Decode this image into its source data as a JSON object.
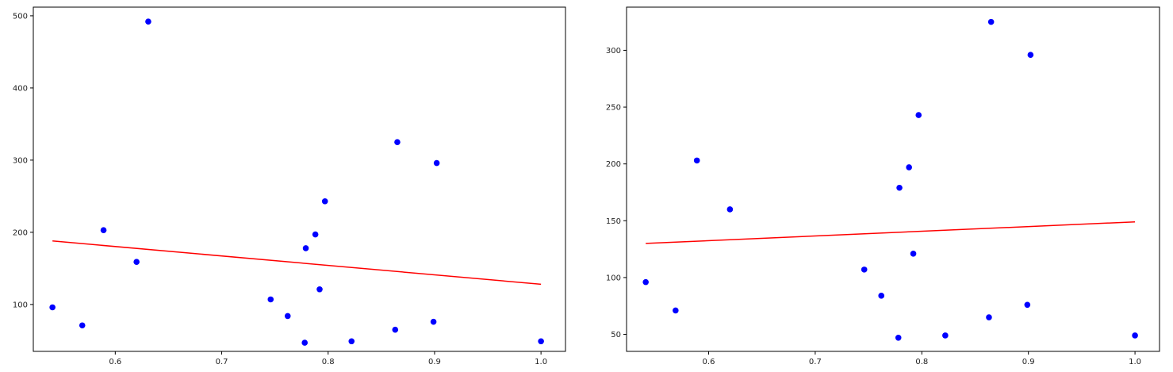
{
  "chart_data": [
    {
      "type": "scatter",
      "title": "",
      "xlabel": "",
      "ylabel": "",
      "xlim": [
        0.523,
        1.023
      ],
      "ylim": [
        35,
        512
      ],
      "xticks": [
        0.6,
        0.7,
        0.8,
        0.9,
        1.0
      ],
      "xtick_labels": [
        "0.6",
        "0.7",
        "0.8",
        "0.9",
        "1.0"
      ],
      "yticks": [
        100,
        200,
        300,
        400,
        500
      ],
      "ytick_labels": [
        "100",
        "200",
        "300",
        "400",
        "500"
      ],
      "grid": false,
      "marker_color": "#0000ff",
      "line_color": "#ff0000",
      "series": [
        {
          "kind": "points",
          "x": [
            0.541,
            0.569,
            0.589,
            0.62,
            0.631,
            0.746,
            0.762,
            0.778,
            0.779,
            0.788,
            0.792,
            0.797,
            0.822,
            0.863,
            0.865,
            0.899,
            0.902,
            1.0
          ],
          "y": [
            96,
            71,
            203,
            159,
            492,
            107,
            84,
            47,
            178,
            197,
            121,
            243,
            49,
            65,
            325,
            76,
            296,
            49
          ]
        },
        {
          "kind": "fit-line",
          "x": [
            0.541,
            1.0
          ],
          "y": [
            188,
            128
          ]
        }
      ]
    },
    {
      "type": "scatter",
      "title": "",
      "xlabel": "",
      "ylabel": "",
      "xlim": [
        0.523,
        1.023
      ],
      "ylim": [
        35,
        338
      ],
      "xticks": [
        0.6,
        0.7,
        0.8,
        0.9,
        1.0
      ],
      "xtick_labels": [
        "0.6",
        "0.7",
        "0.8",
        "0.9",
        "1.0"
      ],
      "yticks": [
        50,
        100,
        150,
        200,
        250,
        300
      ],
      "ytick_labels": [
        "50",
        "100",
        "150",
        "200",
        "250",
        "300"
      ],
      "grid": false,
      "marker_color": "#0000ff",
      "line_color": "#ff0000",
      "series": [
        {
          "kind": "points",
          "x": [
            0.541,
            0.569,
            0.589,
            0.62,
            0.746,
            0.762,
            0.778,
            0.779,
            0.788,
            0.792,
            0.797,
            0.822,
            0.863,
            0.865,
            0.899,
            0.902,
            1.0
          ],
          "y": [
            96,
            71,
            203,
            160,
            107,
            84,
            47,
            179,
            197,
            121,
            243,
            49,
            65,
            325,
            76,
            296,
            49
          ]
        },
        {
          "kind": "fit-line",
          "x": [
            0.541,
            1.0
          ],
          "y": [
            130,
            149
          ]
        }
      ]
    }
  ]
}
